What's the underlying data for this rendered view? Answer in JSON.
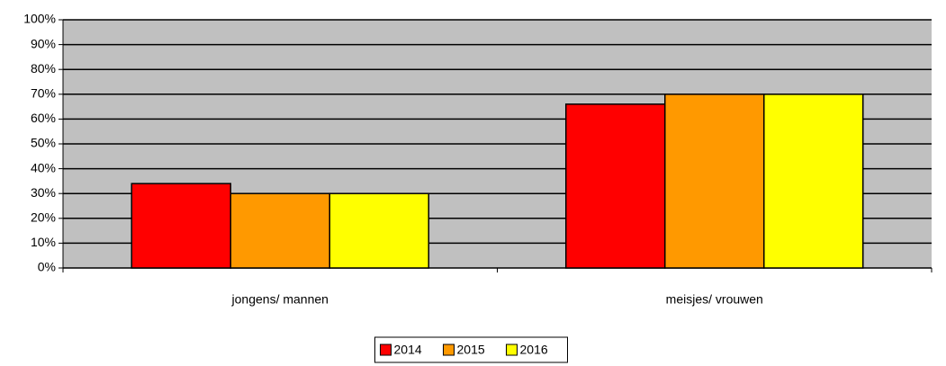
{
  "chart_data": {
    "type": "bar",
    "categories": [
      "jongens/ mannen",
      "meisjes/ vrouwen"
    ],
    "series": [
      {
        "name": "2014",
        "color": "#ff0000",
        "values": [
          34,
          66
        ]
      },
      {
        "name": "2015",
        "color": "#ff9900",
        "values": [
          30,
          70
        ]
      },
      {
        "name": "2016",
        "color": "#ffff00",
        "values": [
          30,
          70
        ]
      }
    ],
    "ylim": [
      0,
      100
    ],
    "yticks": [
      {
        "value": 0,
        "label": "0%"
      },
      {
        "value": 10,
        "label": "10%"
      },
      {
        "value": 20,
        "label": "20%"
      },
      {
        "value": 30,
        "label": "30%"
      },
      {
        "value": 40,
        "label": "40%"
      },
      {
        "value": 50,
        "label": "50%"
      },
      {
        "value": 60,
        "label": "60%"
      },
      {
        "value": 70,
        "label": "70%"
      },
      {
        "value": 80,
        "label": "80%"
      },
      {
        "value": 90,
        "label": "90%"
      },
      {
        "value": 100,
        "label": "100%"
      }
    ],
    "grid": true,
    "plot_background": "#c0c0c0",
    "legend": "bottom"
  }
}
